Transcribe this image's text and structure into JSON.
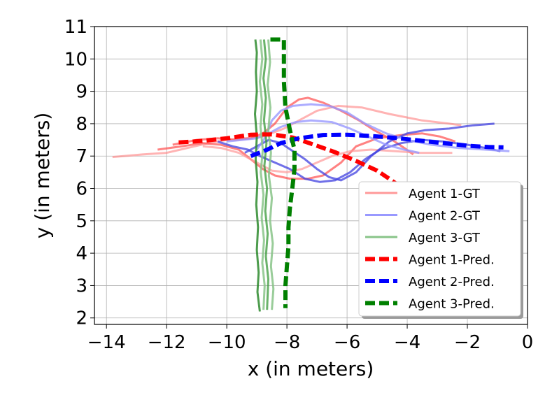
{
  "chart_data": {
    "type": "line",
    "title": "",
    "xlabel": "x (in meters)",
    "ylabel": "y (in meters)",
    "xlim": [
      -14.4,
      0.0
    ],
    "ylim": [
      1.8,
      11.0
    ],
    "xticks": [
      -14,
      -12,
      -10,
      -8,
      -6,
      -4,
      -2,
      0
    ],
    "xtick_labels": [
      "−14",
      "−12",
      "−10",
      "−8",
      "−6",
      "−4",
      "−2",
      "0"
    ],
    "yticks": [
      2,
      3,
      4,
      5,
      6,
      7,
      8,
      9,
      10,
      11
    ],
    "ytick_labels": [
      "2",
      "3",
      "4",
      "5",
      "6",
      "7",
      "8",
      "9",
      "10",
      "11"
    ],
    "grid": true,
    "legend_position": "lower-right",
    "legend": [
      {
        "label": "Agent 1-GT",
        "color": "#ff9999",
        "style": "solid"
      },
      {
        "label": "Agent 2-GT",
        "color": "#9999ff",
        "style": "solid"
      },
      {
        "label": "Agent 3-GT",
        "color": "#88c488",
        "style": "solid"
      },
      {
        "label": "Agent 1-Pred.",
        "color": "#ff0000",
        "style": "dashed"
      },
      {
        "label": "Agent 2-Pred.",
        "color": "#0000ff",
        "style": "dashed"
      },
      {
        "label": "Agent 3-Pred.",
        "color": "#008000",
        "style": "dashed"
      }
    ],
    "series": [
      {
        "group": "Agent 1-GT",
        "color": "#ff8080",
        "opacity": 0.6,
        "width": 3,
        "dashed": false,
        "points": [
          [
            -13.8,
            6.97
          ],
          [
            -12.8,
            7.05
          ],
          [
            -12.0,
            7.1
          ],
          [
            -11.3,
            7.25
          ],
          [
            -10.6,
            7.4
          ],
          [
            -10.0,
            7.5
          ],
          [
            -9.4,
            7.55
          ],
          [
            -8.8,
            7.6
          ],
          [
            -8.1,
            7.85
          ],
          [
            -7.6,
            8.1
          ],
          [
            -7.0,
            8.4
          ],
          [
            -6.3,
            8.55
          ],
          [
            -5.5,
            8.5
          ],
          [
            -4.6,
            8.3
          ],
          [
            -3.5,
            8.1
          ],
          [
            -2.6,
            8.0
          ],
          [
            -2.2,
            7.95
          ]
        ]
      },
      {
        "group": "Agent 1-GT",
        "color": "#ff4d4d",
        "opacity": 0.7,
        "width": 3,
        "dashed": false,
        "points": [
          [
            -12.3,
            7.2
          ],
          [
            -11.5,
            7.3
          ],
          [
            -10.8,
            7.4
          ],
          [
            -10.2,
            7.35
          ],
          [
            -9.6,
            7.2
          ],
          [
            -9.2,
            6.9
          ],
          [
            -8.8,
            6.6
          ],
          [
            -8.4,
            6.4
          ],
          [
            -7.9,
            6.3
          ],
          [
            -7.3,
            6.3
          ],
          [
            -6.8,
            6.4
          ],
          [
            -6.2,
            6.8
          ],
          [
            -5.7,
            7.3
          ],
          [
            -5.0,
            7.55
          ],
          [
            -4.2,
            7.65
          ],
          [
            -3.5,
            7.7
          ],
          [
            -2.9,
            7.6
          ],
          [
            -2.4,
            7.45
          ]
        ]
      },
      {
        "group": "Agent 1-GT",
        "color": "#ff4d4d",
        "opacity": 0.7,
        "width": 3,
        "dashed": false,
        "points": [
          [
            -11.8,
            7.35
          ],
          [
            -11.0,
            7.5
          ],
          [
            -10.3,
            7.55
          ],
          [
            -9.7,
            7.5
          ],
          [
            -9.2,
            7.55
          ],
          [
            -8.8,
            7.7
          ],
          [
            -8.4,
            8.0
          ],
          [
            -8.0,
            8.5
          ],
          [
            -7.6,
            8.75
          ],
          [
            -7.3,
            8.8
          ],
          [
            -6.8,
            8.65
          ],
          [
            -6.2,
            8.4
          ],
          [
            -5.6,
            8.1
          ],
          [
            -5.1,
            7.8
          ],
          [
            -4.5,
            7.5
          ],
          [
            -4.1,
            7.25
          ],
          [
            -3.8,
            7.05
          ]
        ]
      },
      {
        "group": "Agent 1-GT",
        "color": "#ff9999",
        "opacity": 0.7,
        "width": 3,
        "dashed": false,
        "points": [
          [
            -10.8,
            7.3
          ],
          [
            -10.2,
            7.25
          ],
          [
            -9.6,
            7.1
          ],
          [
            -9.0,
            6.8
          ],
          [
            -8.5,
            6.55
          ],
          [
            -8.0,
            6.5
          ],
          [
            -7.5,
            6.6
          ],
          [
            -7.0,
            6.8
          ],
          [
            -6.5,
            7.0
          ],
          [
            -5.9,
            7.15
          ],
          [
            -5.2,
            7.2
          ],
          [
            -4.4,
            7.15
          ],
          [
            -3.6,
            7.1
          ],
          [
            -3.0,
            7.1
          ],
          [
            -2.5,
            7.1
          ]
        ]
      },
      {
        "group": "Agent 2-GT",
        "color": "#4040e0",
        "opacity": 0.75,
        "width": 3,
        "dashed": false,
        "points": [
          [
            -10.3,
            7.45
          ],
          [
            -9.8,
            7.3
          ],
          [
            -9.3,
            7.2
          ],
          [
            -8.9,
            7.0
          ],
          [
            -8.4,
            6.8
          ],
          [
            -7.9,
            6.6
          ],
          [
            -7.4,
            6.3
          ],
          [
            -6.9,
            6.2
          ],
          [
            -6.4,
            6.25
          ],
          [
            -5.9,
            6.5
          ],
          [
            -5.4,
            6.9
          ],
          [
            -4.9,
            7.2
          ],
          [
            -4.2,
            7.4
          ],
          [
            -3.5,
            7.5
          ],
          [
            -2.8,
            7.45
          ],
          [
            -2.0,
            7.35
          ],
          [
            -1.4,
            7.25
          ],
          [
            -0.9,
            7.15
          ]
        ]
      },
      {
        "group": "Agent 2-GT",
        "color": "#4040e0",
        "opacity": 0.75,
        "width": 3,
        "dashed": false,
        "points": [
          [
            -9.4,
            7.1
          ],
          [
            -9.0,
            7.3
          ],
          [
            -8.6,
            7.5
          ],
          [
            -8.2,
            7.4
          ],
          [
            -7.8,
            7.15
          ],
          [
            -7.4,
            6.9
          ],
          [
            -7.0,
            6.6
          ],
          [
            -6.6,
            6.35
          ],
          [
            -6.2,
            6.25
          ],
          [
            -5.7,
            6.5
          ],
          [
            -5.2,
            7.0
          ],
          [
            -4.6,
            7.45
          ],
          [
            -4.0,
            7.7
          ],
          [
            -3.4,
            7.8
          ],
          [
            -2.6,
            7.85
          ],
          [
            -1.8,
            7.95
          ],
          [
            -1.1,
            8.0
          ]
        ]
      },
      {
        "group": "Agent 2-GT",
        "color": "#9999ff",
        "opacity": 0.8,
        "width": 3,
        "dashed": false,
        "points": [
          [
            -9.0,
            7.2
          ],
          [
            -8.7,
            7.6
          ],
          [
            -8.5,
            8.1
          ],
          [
            -8.2,
            8.4
          ],
          [
            -7.8,
            8.55
          ],
          [
            -7.2,
            8.6
          ],
          [
            -6.6,
            8.55
          ],
          [
            -6.0,
            8.35
          ],
          [
            -5.4,
            8.0
          ],
          [
            -4.7,
            7.7
          ],
          [
            -4.0,
            7.5
          ],
          [
            -3.2,
            7.35
          ],
          [
            -2.3,
            7.25
          ],
          [
            -1.4,
            7.2
          ],
          [
            -0.6,
            7.15
          ]
        ]
      },
      {
        "group": "Agent 2-GT",
        "color": "#9999ff",
        "opacity": 0.8,
        "width": 3,
        "dashed": false,
        "points": [
          [
            -10.0,
            7.45
          ],
          [
            -9.5,
            7.5
          ],
          [
            -9.0,
            7.55
          ],
          [
            -8.6,
            7.7
          ],
          [
            -8.2,
            7.9
          ],
          [
            -7.7,
            8.05
          ],
          [
            -7.2,
            8.1
          ],
          [
            -6.5,
            8.05
          ],
          [
            -5.9,
            7.85
          ],
          [
            -5.3,
            7.6
          ],
          [
            -4.7,
            7.35
          ],
          [
            -4.1,
            7.2
          ],
          [
            -3.6,
            7.1
          ]
        ]
      },
      {
        "group": "Agent 3-GT",
        "color": "#2e8b2e",
        "opacity": 0.85,
        "width": 3,
        "dashed": false,
        "points": [
          [
            -9.05,
            10.6
          ],
          [
            -9.0,
            10.2
          ],
          [
            -9.03,
            9.6
          ],
          [
            -9.0,
            9.0
          ],
          [
            -9.06,
            8.3
          ],
          [
            -9.0,
            7.6
          ],
          [
            -9.04,
            6.9
          ],
          [
            -8.98,
            6.2
          ],
          [
            -9.02,
            5.5
          ],
          [
            -8.96,
            4.8
          ],
          [
            -9.0,
            4.1
          ],
          [
            -8.94,
            3.4
          ],
          [
            -8.98,
            2.8
          ],
          [
            -8.9,
            2.2
          ]
        ]
      },
      {
        "group": "Agent 3-GT",
        "color": "#88c488",
        "opacity": 0.85,
        "width": 3,
        "dashed": false,
        "points": [
          [
            -8.88,
            10.6
          ],
          [
            -8.82,
            10.0
          ],
          [
            -8.9,
            9.3
          ],
          [
            -8.82,
            8.6
          ],
          [
            -8.88,
            7.9
          ],
          [
            -8.8,
            7.2
          ],
          [
            -8.87,
            6.5
          ],
          [
            -8.78,
            5.8
          ],
          [
            -8.84,
            5.1
          ],
          [
            -8.76,
            4.4
          ],
          [
            -8.82,
            3.7
          ],
          [
            -8.74,
            3.0
          ],
          [
            -8.78,
            2.25
          ]
        ]
      },
      {
        "group": "Agent 3-GT",
        "color": "#3a9a3a",
        "opacity": 0.75,
        "width": 3,
        "dashed": false,
        "points": [
          [
            -8.76,
            10.6
          ],
          [
            -8.7,
            10.0
          ],
          [
            -8.78,
            9.4
          ],
          [
            -8.7,
            8.8
          ],
          [
            -8.76,
            8.1
          ],
          [
            -8.68,
            7.4
          ],
          [
            -8.75,
            6.7
          ],
          [
            -8.66,
            6.0
          ],
          [
            -8.72,
            5.3
          ],
          [
            -8.64,
            4.6
          ],
          [
            -8.7,
            3.9
          ],
          [
            -8.62,
            3.2
          ],
          [
            -8.66,
            2.25
          ]
        ]
      },
      {
        "group": "Agent 3-GT",
        "color": "#88c488",
        "opacity": 0.85,
        "width": 3,
        "dashed": false,
        "points": [
          [
            -8.62,
            10.6
          ],
          [
            -8.56,
            9.9
          ],
          [
            -8.64,
            9.2
          ],
          [
            -8.55,
            8.5
          ],
          [
            -8.62,
            7.8
          ],
          [
            -8.53,
            7.1
          ],
          [
            -8.6,
            6.4
          ],
          [
            -8.5,
            5.7
          ],
          [
            -8.56,
            5.0
          ],
          [
            -8.47,
            4.3
          ],
          [
            -8.53,
            3.6
          ],
          [
            -8.45,
            2.9
          ],
          [
            -8.5,
            2.25
          ]
        ]
      },
      {
        "group": "Agent 1-Pred.",
        "color": "#ff0000",
        "opacity": 1.0,
        "width": 6,
        "dashed": true,
        "points": [
          [
            -11.6,
            7.42
          ],
          [
            -10.8,
            7.47
          ],
          [
            -10.0,
            7.55
          ],
          [
            -9.2,
            7.66
          ],
          [
            -8.5,
            7.67
          ],
          [
            -7.8,
            7.57
          ],
          [
            -7.1,
            7.35
          ],
          [
            -6.4,
            7.12
          ],
          [
            -5.7,
            6.85
          ],
          [
            -5.0,
            6.55
          ],
          [
            -4.6,
            6.3
          ],
          [
            -4.3,
            6.1
          ]
        ]
      },
      {
        "group": "Agent 2-Pred.",
        "color": "#0000ff",
        "opacity": 1.0,
        "width": 6,
        "dashed": true,
        "points": [
          [
            -9.2,
            7.0
          ],
          [
            -8.7,
            7.18
          ],
          [
            -8.2,
            7.4
          ],
          [
            -7.6,
            7.55
          ],
          [
            -6.8,
            7.65
          ],
          [
            -6.0,
            7.66
          ],
          [
            -5.2,
            7.62
          ],
          [
            -4.4,
            7.56
          ],
          [
            -3.6,
            7.48
          ],
          [
            -2.8,
            7.4
          ],
          [
            -2.0,
            7.32
          ],
          [
            -1.3,
            7.28
          ],
          [
            -0.8,
            7.27
          ]
        ]
      },
      {
        "group": "Agent 3-Pred.",
        "color": "#008000",
        "opacity": 1.0,
        "width": 6,
        "dashed": true,
        "points": [
          [
            -8.55,
            10.6
          ],
          [
            -8.1,
            10.6
          ],
          [
            -8.1,
            10.0
          ],
          [
            -8.1,
            9.3
          ],
          [
            -8.05,
            8.5
          ],
          [
            -7.9,
            7.8
          ],
          [
            -7.75,
            7.2
          ],
          [
            -7.75,
            6.6
          ],
          [
            -7.82,
            6.0
          ],
          [
            -7.9,
            5.4
          ],
          [
            -7.95,
            4.8
          ],
          [
            -7.95,
            4.2
          ],
          [
            -8.0,
            3.6
          ],
          [
            -8.05,
            3.0
          ],
          [
            -8.05,
            2.3
          ]
        ]
      }
    ]
  }
}
